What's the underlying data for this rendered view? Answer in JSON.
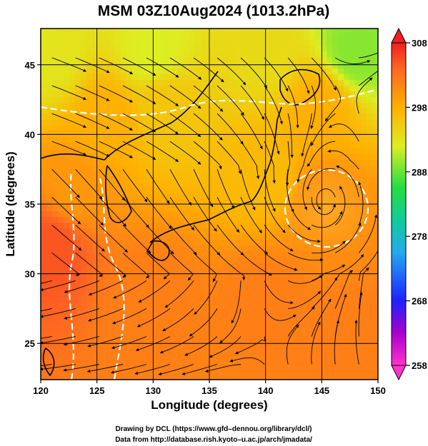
{
  "chart_data": {
    "type": "heatmap",
    "title": "MSM 03Z10Aug2024 (1013.2hPa)",
    "xlabel": "Longitude (degrees)",
    "ylabel": "Latitude  (degrees)",
    "xlim": [
      120,
      150
    ],
    "ylim": [
      22.4,
      47.6
    ],
    "x_ticks": [
      "120",
      "125",
      "130",
      "135",
      "140",
      "145",
      "150"
    ],
    "y_ticks": [
      "25",
      "30",
      "35",
      "40",
      "45"
    ],
    "grid": true,
    "colorbar": {
      "range": [
        258,
        308
      ],
      "ticks": [
        "258",
        "268",
        "278",
        "288",
        "298",
        "308"
      ],
      "extend": "both",
      "placement": "right"
    },
    "overlay": "streamlines",
    "field_samples": [
      {
        "lon": 121,
        "lat": 46,
        "value": 293
      },
      {
        "lon": 130,
        "lat": 46,
        "value": 292
      },
      {
        "lon": 140,
        "lat": 46,
        "value": 294
      },
      {
        "lon": 148,
        "lat": 46,
        "value": 289
      },
      {
        "lon": 126,
        "lat": 41,
        "value": 298
      },
      {
        "lon": 131,
        "lat": 42,
        "value": 296
      },
      {
        "lon": 145,
        "lat": 42,
        "value": 298
      },
      {
        "lon": 123,
        "lat": 36,
        "value": 300
      },
      {
        "lon": 140,
        "lat": 37,
        "value": 297
      },
      {
        "lon": 145,
        "lat": 35,
        "value": 301
      },
      {
        "lon": 121,
        "lat": 32,
        "value": 305
      },
      {
        "lon": 130,
        "lat": 28,
        "value": 302
      },
      {
        "lon": 140,
        "lat": 28,
        "value": 302
      },
      {
        "lon": 148,
        "lat": 25,
        "value": 302
      }
    ],
    "typhoon_center": {
      "lon": 145.3,
      "lat": 35.2
    }
  },
  "credits": {
    "line1": "Drawing by DCL (https://www.gfd–dennou.org/library/dcl/)",
    "line2": "Data from http://database.rish.kyoto–u.ac.jp/arch/jmadata/"
  }
}
